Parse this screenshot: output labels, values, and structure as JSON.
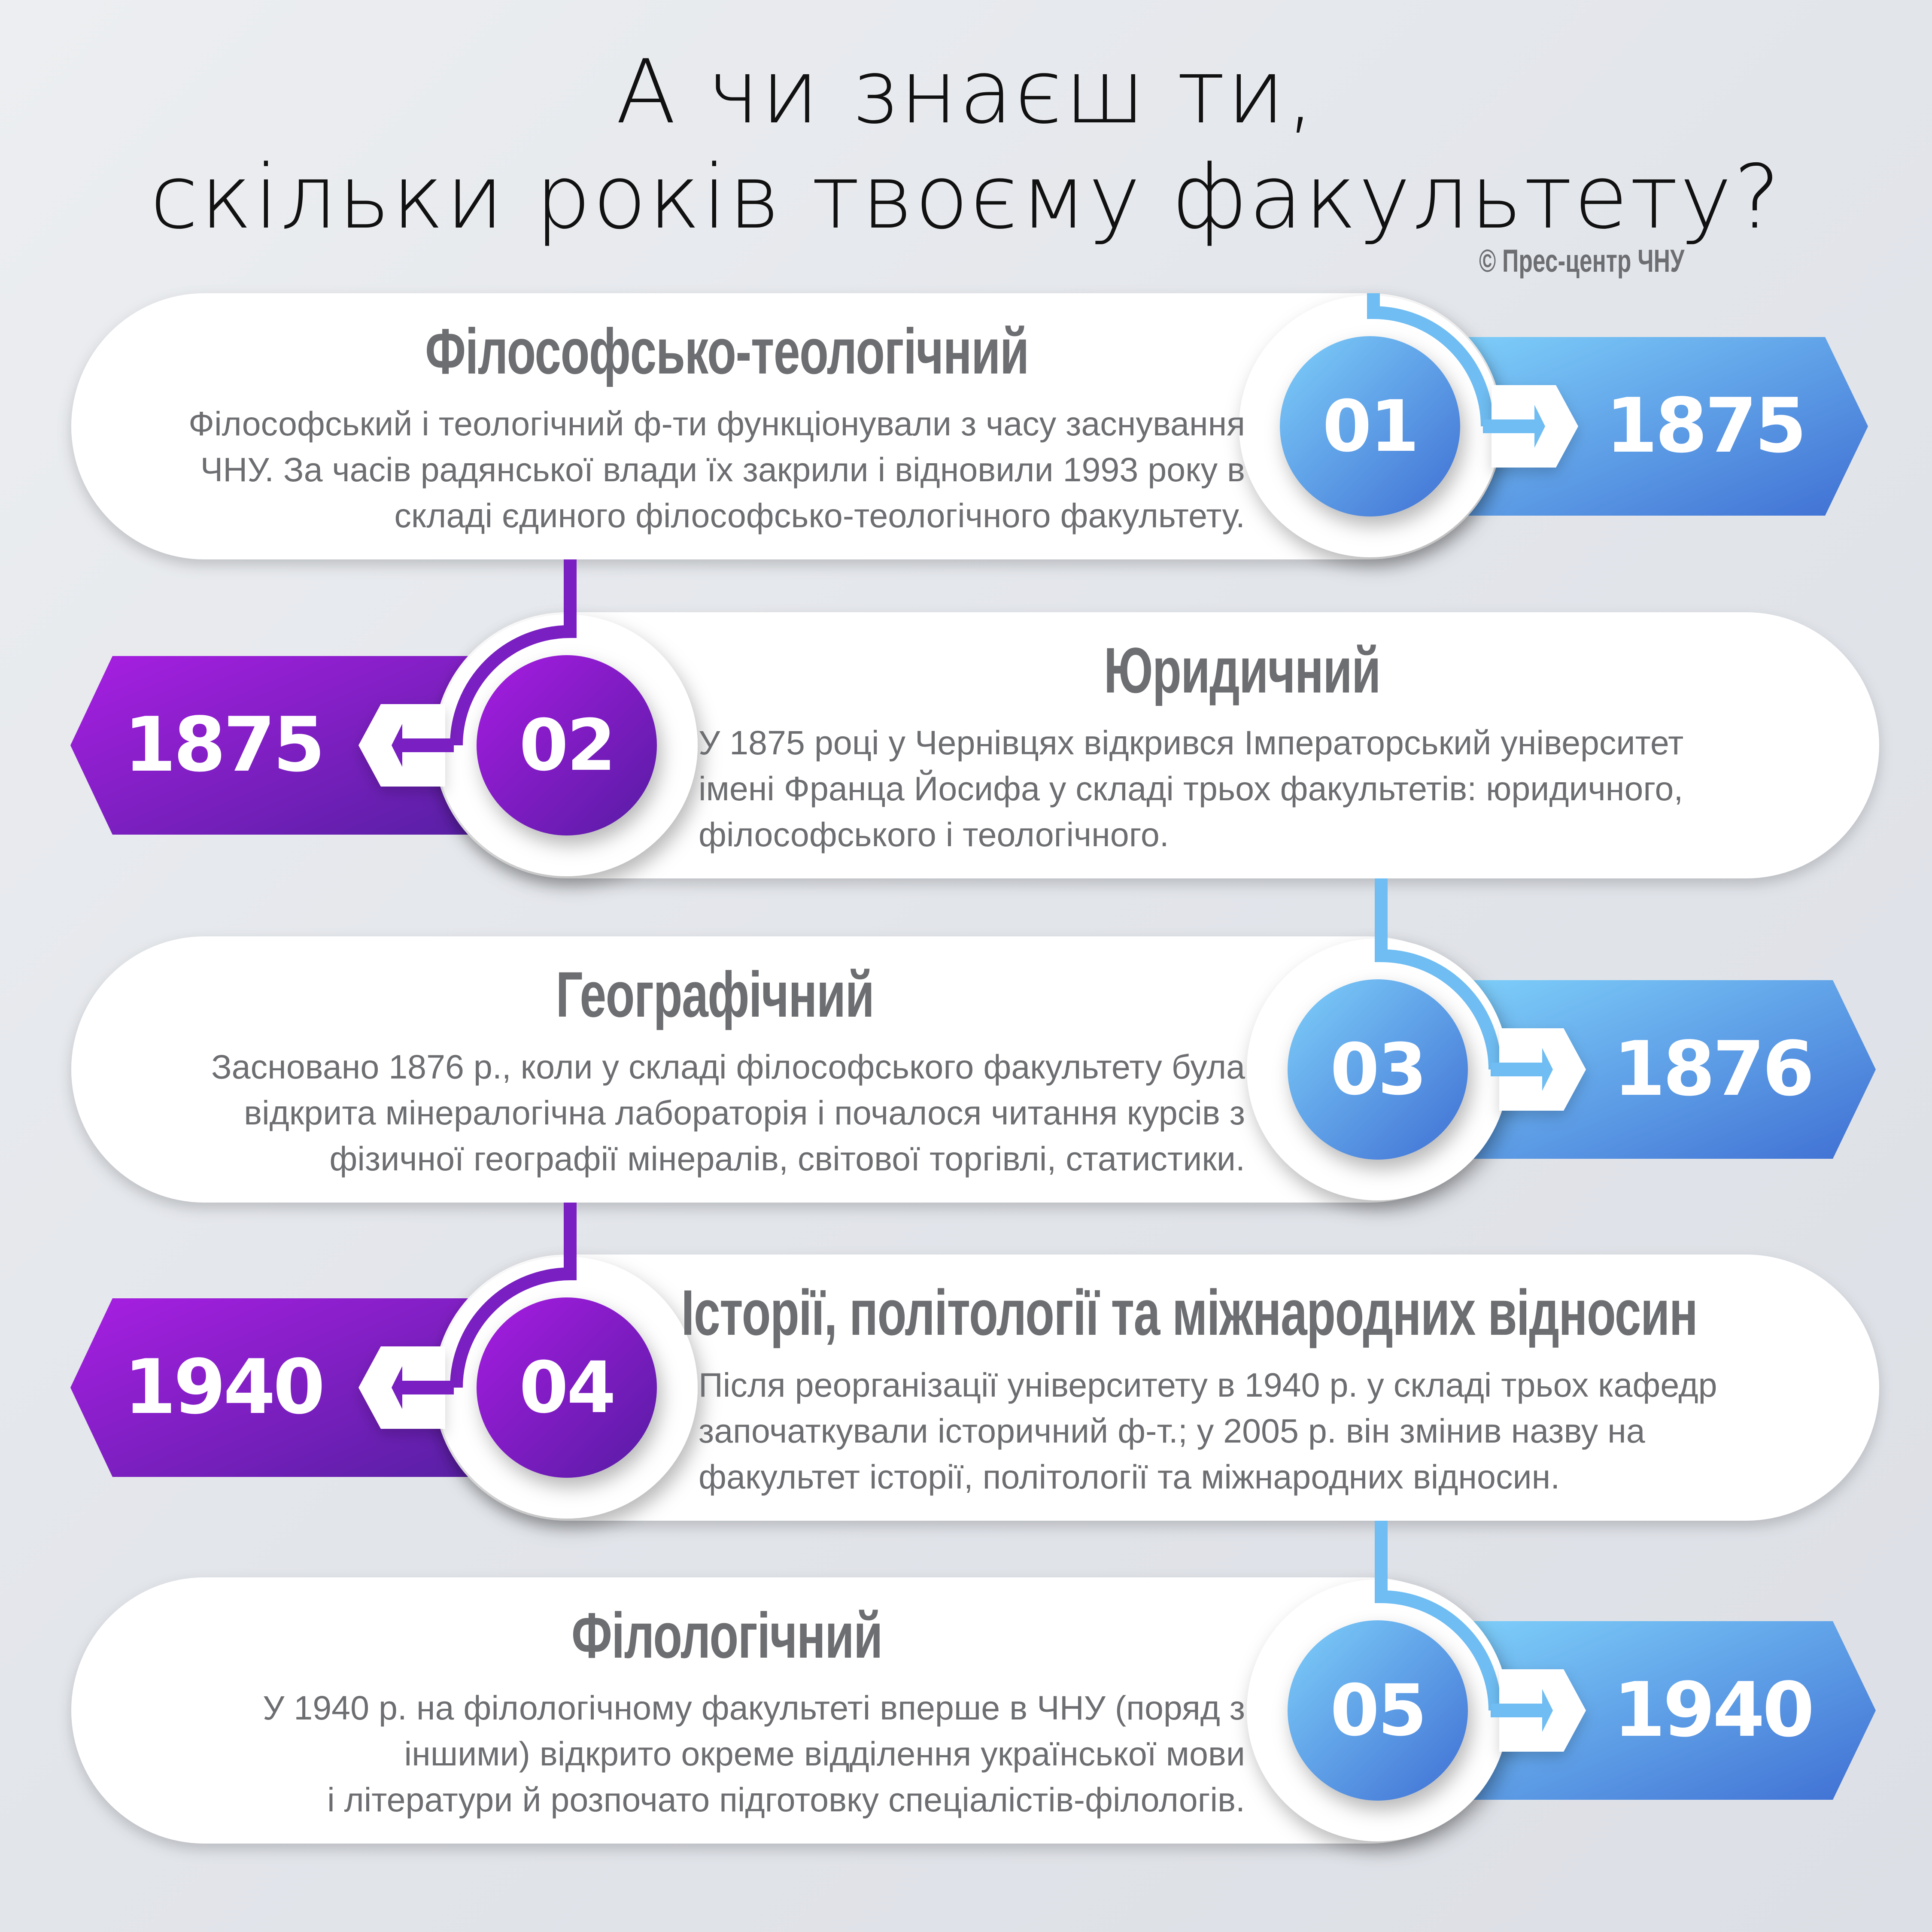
{
  "header": {
    "title_line1": "А чи знаєш ти,",
    "title_line2": "скільки років твоєму факультету?",
    "credit": "© Прес-центр ЧНУ"
  },
  "colors": {
    "blue_light": "#7ecffa",
    "blue_dark": "#3f6fd3",
    "purple_light": "#a81fe2",
    "purple_dark": "#561fa3",
    "text_gray": "#6d6e71",
    "background": "#e4e7eb"
  },
  "items": [
    {
      "number": "01",
      "year": "1875",
      "side": "right",
      "color": "blue",
      "heading": "Філософсько-теологічний",
      "body": [
        "Філософський і теологічний ф-ти функціонували з часу заснування",
        "ЧНУ. За часів радянської влади їх закрили і відновили 1993 року в",
        "складі єдиного філософсько-теологічного факультету."
      ]
    },
    {
      "number": "02",
      "year": "1875",
      "side": "left",
      "color": "purple",
      "heading": "Юридичний",
      "body": [
        "У 1875 році у Чернівцях відкрився Імператорський університет",
        "імені Франца Йосифа у складі трьох факультетів: юридичного,",
        "філософського і теологічного."
      ]
    },
    {
      "number": "03",
      "year": "1876",
      "side": "right",
      "color": "blue",
      "heading": "Географічний",
      "body": [
        "Засновано 1876 р., коли у складі філософського факультету була",
        "відкрита мінералогічна лабораторія і почалося читання курсів з",
        "фізичної географії мінералів, світової торгівлі, статистики."
      ]
    },
    {
      "number": "04",
      "year": "1940",
      "side": "left",
      "color": "purple",
      "heading": "Історії, політології та міжнародних відносин",
      "body": [
        "Після реорганізації університету в 1940 р. у складі трьох кафедр",
        "започаткували історичний ф-т.; у 2005 р. він змінив назву на",
        "факультет історії, політології та міжнародних відносин."
      ]
    },
    {
      "number": "05",
      "year": "1940",
      "side": "right",
      "color": "blue",
      "heading": "Філологічний",
      "body": [
        "У 1940 р. на філологічному факультеті вперше в ЧНУ (поряд з",
        "іншими) відкрито окреме відділення української мови",
        "і літератури й розпочато підготовку спеціалістів-філологів."
      ]
    }
  ]
}
